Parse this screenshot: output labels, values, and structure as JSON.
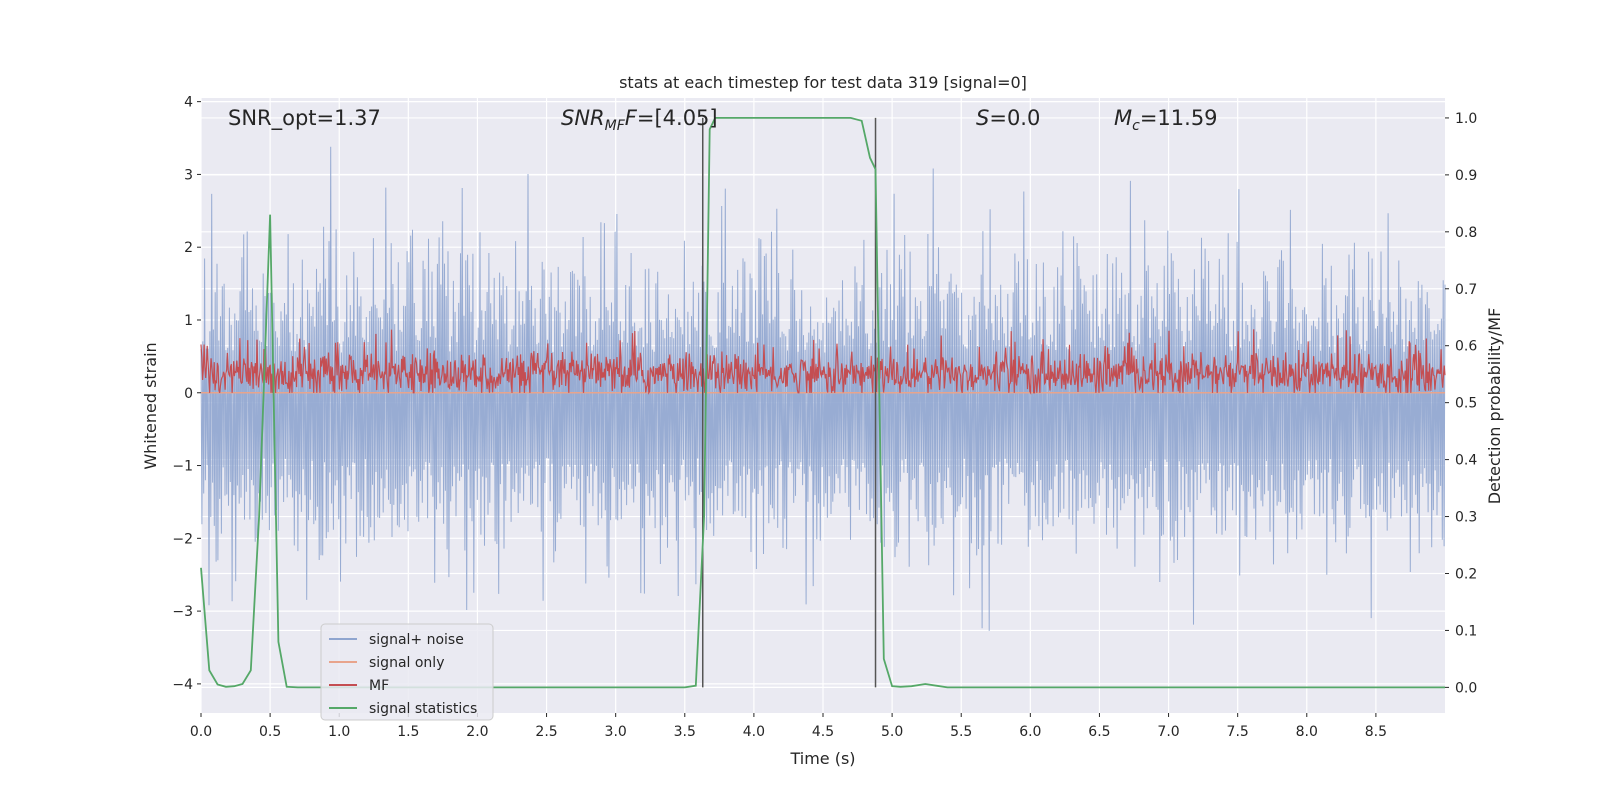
{
  "chart_data": {
    "type": "line",
    "title": "stats at each timestep for test data 319 [signal=0]",
    "xlabel": "Time (s)",
    "ylabel_left": "Whitened strain",
    "ylabel_right": "Detection probability/MF",
    "xlim": [
      0.0,
      9.0
    ],
    "ylim_left": [
      -4.4,
      4.05
    ],
    "ylim_right": [
      -0.045,
      1.035
    ],
    "x_ticks": [
      "0.0",
      "0.5",
      "1.0",
      "1.5",
      "2.0",
      "2.5",
      "3.0",
      "3.5",
      "4.0",
      "4.5",
      "5.0",
      "5.5",
      "6.0",
      "6.5",
      "7.0",
      "7.5",
      "8.0",
      "8.5"
    ],
    "y_left_ticks": [
      "−4",
      "−3",
      "−2",
      "−1",
      "0",
      "1",
      "2",
      "3",
      "4"
    ],
    "y_right_ticks": [
      "0.0",
      "0.1",
      "0.2",
      "0.3",
      "0.4",
      "0.5",
      "0.6",
      "0.7",
      "0.8",
      "0.9",
      "1.0"
    ],
    "grid": true,
    "legend_position": "lower-left",
    "annotations": {
      "snr_opt": "SNR_opt=1.37",
      "snr_mf_main": "SNR",
      "snr_mf_sub": "MF",
      "snr_mf_rest": "=[4.05]",
      "s_label": "S",
      "s_rest": "=0.0",
      "mc_main": "M",
      "mc_sub": "c",
      "mc_rest": "=11.59"
    },
    "vertical_lines": [
      3.63,
      4.88
    ],
    "series": [
      {
        "name": "signal+ noise",
        "color": "#8fa5cf",
        "description_range": "noise band spanning roughly -1.7 to 1.3 with spikes up to 3.4 and down to -4.0",
        "values": []
      },
      {
        "name": "signal only",
        "color": "#e8a48c",
        "values": [
          [
            0.0,
            0.0
          ],
          [
            9.0,
            0.0
          ]
        ]
      },
      {
        "name": "MF",
        "color": "#c44e52",
        "values": []
      },
      {
        "name": "signal statistics",
        "color": "#55a868",
        "values": [
          [
            0.0,
            0.21
          ],
          [
            0.06,
            0.03
          ],
          [
            0.12,
            0.005
          ],
          [
            0.18,
            0.001
          ],
          [
            0.24,
            0.002
          ],
          [
            0.3,
            0.006
          ],
          [
            0.36,
            0.03
          ],
          [
            0.42,
            0.3
          ],
          [
            0.5,
            0.83
          ],
          [
            0.56,
            0.08
          ],
          [
            0.62,
            0.001
          ],
          [
            0.7,
            0.0
          ],
          [
            3.5,
            0.0
          ],
          [
            3.58,
            0.003
          ],
          [
            3.64,
            0.3
          ],
          [
            3.68,
            0.98
          ],
          [
            3.72,
            1.0
          ],
          [
            4.7,
            1.0
          ],
          [
            4.78,
            0.995
          ],
          [
            4.84,
            0.93
          ],
          [
            4.88,
            0.91
          ],
          [
            4.94,
            0.05
          ],
          [
            5.0,
            0.002
          ],
          [
            5.06,
            0.001
          ],
          [
            5.14,
            0.002
          ],
          [
            5.24,
            0.006
          ],
          [
            5.32,
            0.003
          ],
          [
            5.4,
            0.0
          ],
          [
            9.0,
            0.0
          ]
        ]
      }
    ]
  }
}
